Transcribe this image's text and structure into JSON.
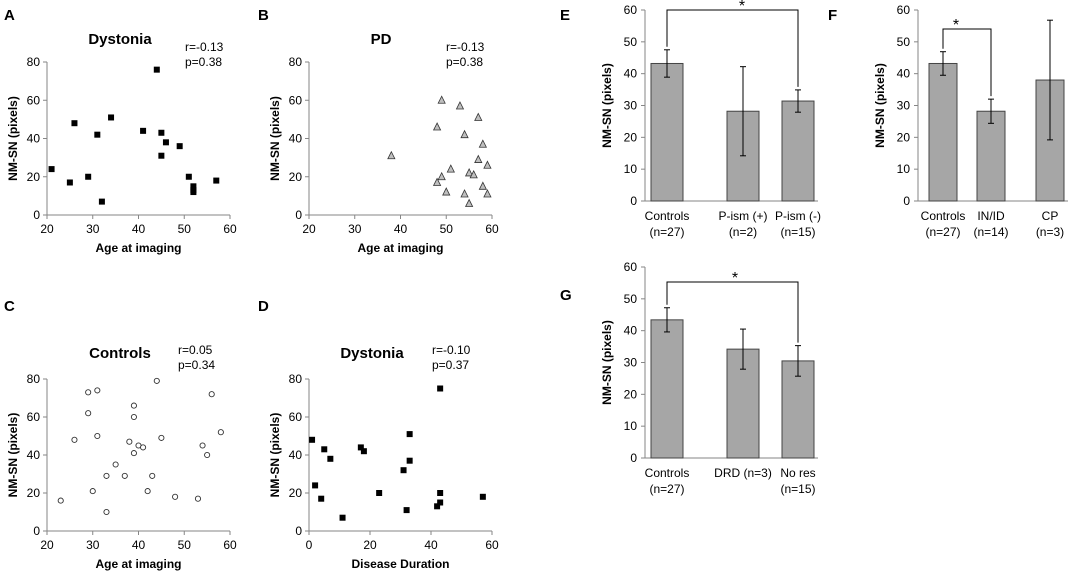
{
  "figure": {
    "panels": [
      {
        "id": "A",
        "kind": "scatter",
        "letter": "A",
        "title": "Dystonia",
        "stat_r": "r=-0.13",
        "stat_p": "p=0.38",
        "marker": "square"
      },
      {
        "id": "B",
        "kind": "scatter",
        "letter": "B",
        "title": "PD",
        "stat_r": "r=-0.13",
        "stat_p": "p=0.38",
        "marker": "triangle"
      },
      {
        "id": "C",
        "kind": "scatter",
        "letter": "C",
        "title": "Controls",
        "stat_r": "r=0.05",
        "stat_p": "p=0.34",
        "marker": "circle"
      },
      {
        "id": "D",
        "kind": "scatter",
        "letter": "D",
        "title": "Dystonia",
        "stat_r": "r=-0.10",
        "stat_p": "p=0.37",
        "marker": "square"
      },
      {
        "id": "E",
        "kind": "bar",
        "letter": "E",
        "significance": "*"
      },
      {
        "id": "F",
        "kind": "bar",
        "letter": "F",
        "significance": "*"
      },
      {
        "id": "G",
        "kind": "bar",
        "letter": "G",
        "significance": "*"
      }
    ]
  },
  "chart_data": [
    {
      "panel": "A",
      "type": "scatter",
      "title": "Dystonia",
      "xlabel": "Age at imaging",
      "ylabel": "NM-SN (pixels)",
      "xlim": [
        20,
        60
      ],
      "ylim": [
        0,
        80
      ],
      "xticks": [
        "20",
        "30",
        "40",
        "50",
        "60"
      ],
      "yticks": [
        "0",
        "20",
        "40",
        "60",
        "80"
      ],
      "x": [
        21,
        25,
        26,
        29,
        31,
        32,
        34,
        41,
        44,
        45,
        45,
        46,
        49,
        51,
        52,
        52,
        52,
        57
      ],
      "y": [
        24,
        17,
        48,
        20,
        42,
        7,
        51,
        44,
        76,
        43,
        31,
        38,
        36,
        20,
        15,
        13,
        12,
        18
      ]
    },
    {
      "panel": "B",
      "type": "scatter",
      "title": "PD",
      "xlabel": "Age at imaging",
      "ylabel": "NM-SN (pixels)",
      "xlim": [
        20,
        60
      ],
      "ylim": [
        0,
        80
      ],
      "xticks": [
        "20",
        "30",
        "40",
        "50",
        "60"
      ],
      "yticks": [
        "0",
        "20",
        "40",
        "60",
        "80"
      ],
      "x": [
        38,
        48,
        48,
        49,
        49,
        50,
        51,
        53,
        54,
        55,
        55,
        56,
        57,
        57,
        58,
        58,
        59,
        59,
        54
      ],
      "y": [
        31,
        46,
        17,
        60,
        20,
        12,
        24,
        57,
        11,
        22,
        6,
        21,
        51,
        29,
        37,
        15,
        26,
        11,
        42
      ]
    },
    {
      "panel": "C",
      "type": "scatter",
      "title": "Controls",
      "xlabel": "Age at imaging",
      "ylabel": "NM-SN (pixels)",
      "xlim": [
        20,
        60
      ],
      "ylim": [
        0,
        80
      ],
      "xticks": [
        "20",
        "30",
        "40",
        "50",
        "60"
      ],
      "yticks": [
        "0",
        "20",
        "40",
        "60",
        "80"
      ],
      "x": [
        23,
        26,
        29,
        29,
        30,
        31,
        31,
        33,
        33,
        35,
        37,
        38,
        39,
        39,
        39,
        40,
        41,
        42,
        43,
        44,
        45,
        48,
        53,
        54,
        55,
        56,
        58
      ],
      "y": [
        16,
        48,
        73,
        62,
        21,
        74,
        50,
        29,
        10,
        35,
        29,
        47,
        66,
        60,
        41,
        45,
        44,
        21,
        29,
        79,
        49,
        18,
        17,
        45,
        40,
        72,
        52
      ]
    },
    {
      "panel": "D",
      "type": "scatter",
      "title": "Dystonia",
      "xlabel": "Disease Duration",
      "ylabel": "NM-SN (pixels)",
      "xlim": [
        0,
        60
      ],
      "ylim": [
        0,
        80
      ],
      "xticks": [
        "0",
        "20",
        "40",
        "60"
      ],
      "yticks": [
        "0",
        "20",
        "40",
        "60",
        "80"
      ],
      "x": [
        1,
        2,
        4,
        5,
        7,
        11,
        17,
        18,
        23,
        31,
        32,
        33,
        33,
        42,
        43,
        43,
        43,
        57
      ],
      "y": [
        48,
        24,
        17,
        43,
        38,
        7,
        44,
        42,
        20,
        32,
        11,
        51,
        37,
        13,
        75,
        15,
        20,
        18
      ]
    },
    {
      "panel": "E",
      "type": "bar",
      "ylabel": "NM-SN (pixels)",
      "ylim": [
        0,
        60
      ],
      "yticks": [
        "0",
        "10",
        "20",
        "30",
        "40",
        "50",
        "60"
      ],
      "categories": [
        "Controls",
        "P-ism (+)",
        "P-ism (-)"
      ],
      "category_n": [
        "(n=27)",
        "(n=2)",
        "(n=15)"
      ],
      "values": [
        43.2,
        28.2,
        31.4
      ],
      "errors": [
        4.3,
        14.0,
        3.5
      ],
      "significance": {
        "between": [
          0,
          2
        ],
        "label": "*"
      }
    },
    {
      "panel": "F",
      "type": "bar",
      "ylabel": "NM-SN (pixels)",
      "ylim": [
        0,
        60
      ],
      "yticks": [
        "0",
        "10",
        "20",
        "30",
        "40",
        "50",
        "60"
      ],
      "categories": [
        "Controls",
        "IN/ID",
        "CP"
      ],
      "category_n": [
        "(n=27)",
        "(n=14)",
        "(n=3)"
      ],
      "values": [
        43.2,
        28.2,
        38.0
      ],
      "errors": [
        3.7,
        3.8,
        18.8
      ],
      "significance": {
        "between": [
          0,
          1
        ],
        "label": "*"
      }
    },
    {
      "panel": "G",
      "type": "bar",
      "ylabel": "NM-SN (pixels)",
      "ylim": [
        0,
        60
      ],
      "yticks": [
        "0",
        "10",
        "20",
        "30",
        "40",
        "50",
        "60"
      ],
      "categories": [
        "Controls",
        "DRD (n=3)",
        "No res"
      ],
      "category_n": [
        "(n=27)",
        "",
        "(n=15)"
      ],
      "values": [
        43.4,
        34.2,
        30.5
      ],
      "errors": [
        3.8,
        6.3,
        4.8
      ],
      "significance": {
        "between": [
          0,
          2
        ],
        "label": "*"
      }
    }
  ]
}
